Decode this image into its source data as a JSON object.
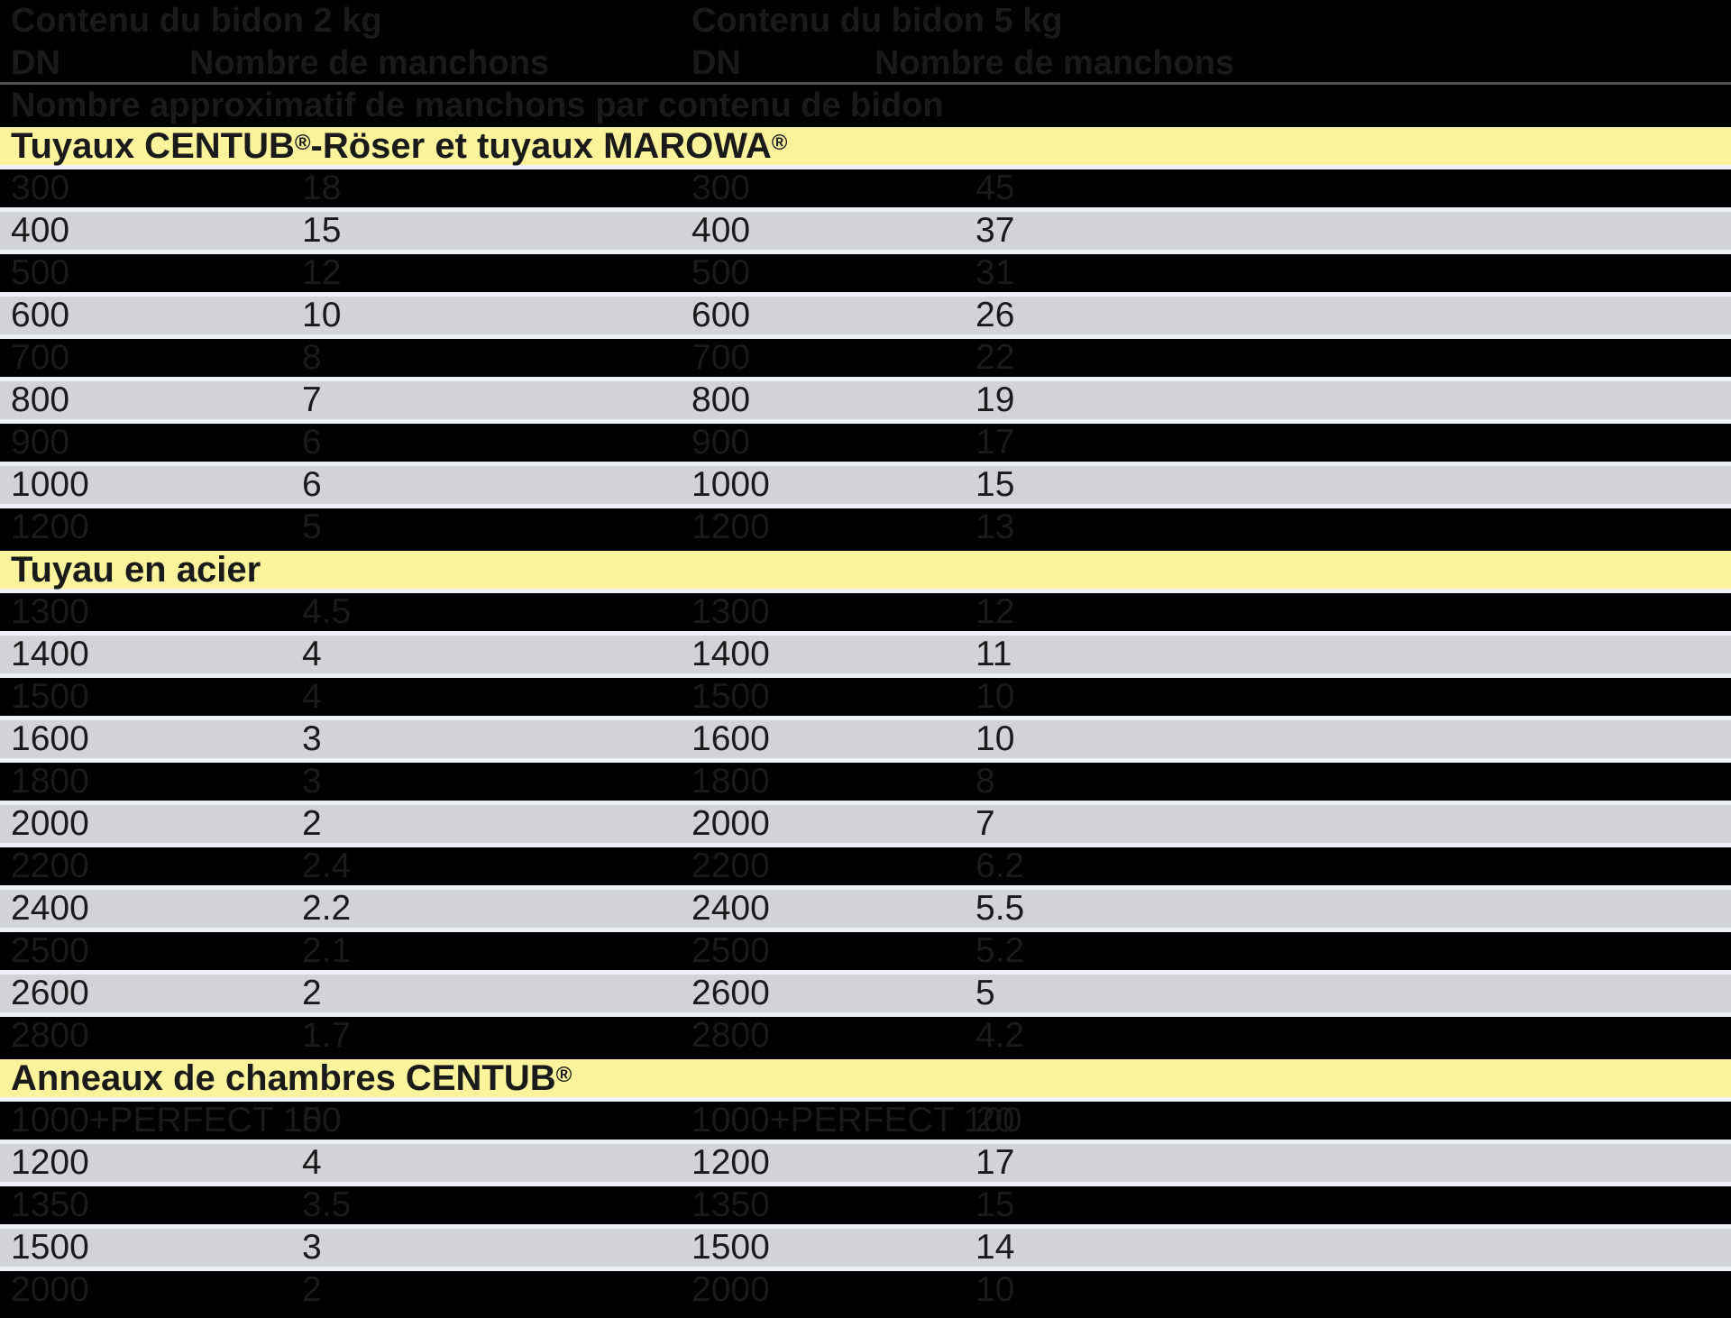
{
  "table": {
    "header": {
      "group_left": "Contenu du bidon 2 kg",
      "group_right": "Contenu du bidon 5 kg",
      "dn_label": "DN",
      "count_label": "Nombre de manchons",
      "subtitle": "Nombre approximatif de manchons par contenu de bidon"
    },
    "sections": [
      {
        "label": "Tuyaux CENTUB®-Röser et tuyaux MAROWA®",
        "rows": [
          {
            "dn_left": "300",
            "count_left": "18",
            "dn_right": "300",
            "count_right": "45"
          },
          {
            "dn_left": "400",
            "count_left": "15",
            "dn_right": "400",
            "count_right": "37"
          },
          {
            "dn_left": "500",
            "count_left": "12",
            "dn_right": "500",
            "count_right": "31"
          },
          {
            "dn_left": "600",
            "count_left": "10",
            "dn_right": "600",
            "count_right": "26"
          },
          {
            "dn_left": "700",
            "count_left": "8",
            "dn_right": "700",
            "count_right": "22"
          },
          {
            "dn_left": "800",
            "count_left": "7",
            "dn_right": "800",
            "count_right": "19"
          },
          {
            "dn_left": "900",
            "count_left": "6",
            "dn_right": "900",
            "count_right": "17"
          },
          {
            "dn_left": "1000",
            "count_left": "6",
            "dn_right": "1000",
            "count_right": "15"
          },
          {
            "dn_left": "1200",
            "count_left": "5",
            "dn_right": "1200",
            "count_right": "13"
          }
        ]
      },
      {
        "label": "Tuyau en acier",
        "rows": [
          {
            "dn_left": "1300",
            "count_left": "4.5",
            "dn_right": "1300",
            "count_right": "12"
          },
          {
            "dn_left": "1400",
            "count_left": "4",
            "dn_right": "1400",
            "count_right": "11"
          },
          {
            "dn_left": "1500",
            "count_left": "4",
            "dn_right": "1500",
            "count_right": "10"
          },
          {
            "dn_left": "1600",
            "count_left": "3",
            "dn_right": "1600",
            "count_right": "10"
          },
          {
            "dn_left": "1800",
            "count_left": "3",
            "dn_right": "1800",
            "count_right": "8"
          },
          {
            "dn_left": "2000",
            "count_left": "2",
            "dn_right": "2000",
            "count_right": "7"
          },
          {
            "dn_left": "2200",
            "count_left": "2.4",
            "dn_right": "2200",
            "count_right": "6.2"
          },
          {
            "dn_left": "2400",
            "count_left": "2.2",
            "dn_right": "2400",
            "count_right": "5.5"
          },
          {
            "dn_left": "2500",
            "count_left": "2.1",
            "dn_right": "2500",
            "count_right": "5.2"
          },
          {
            "dn_left": "2600",
            "count_left": "2",
            "dn_right": "2600",
            "count_right": "5"
          },
          {
            "dn_left": "2800",
            "count_left": "1.7",
            "dn_right": "2800",
            "count_right": "4.2"
          }
        ]
      },
      {
        "label": "Anneaux de chambres CENTUB®",
        "rows": [
          {
            "dn_left": "1000+PERFECT 100",
            "count_left": "5",
            "dn_right": "1000+PERFECT 100",
            "count_right": "20"
          },
          {
            "dn_left": "1200",
            "count_left": "4",
            "dn_right": "1200",
            "count_right": "17"
          },
          {
            "dn_left": "1350",
            "count_left": "3.5",
            "dn_right": "1350",
            "count_right": "15"
          },
          {
            "dn_left": "1500",
            "count_left": "3",
            "dn_right": "1500",
            "count_right": "14"
          },
          {
            "dn_left": "2000",
            "count_left": "2",
            "dn_right": "2000",
            "count_right": "10"
          }
        ]
      }
    ]
  },
  "colors": {
    "row_light": "#d3d3d5",
    "row_dark": "#000000",
    "section_band": "#fbf49d",
    "separator": "#edeff5",
    "text": "#1a1a1a",
    "header_rule": "#4f4f4f"
  }
}
